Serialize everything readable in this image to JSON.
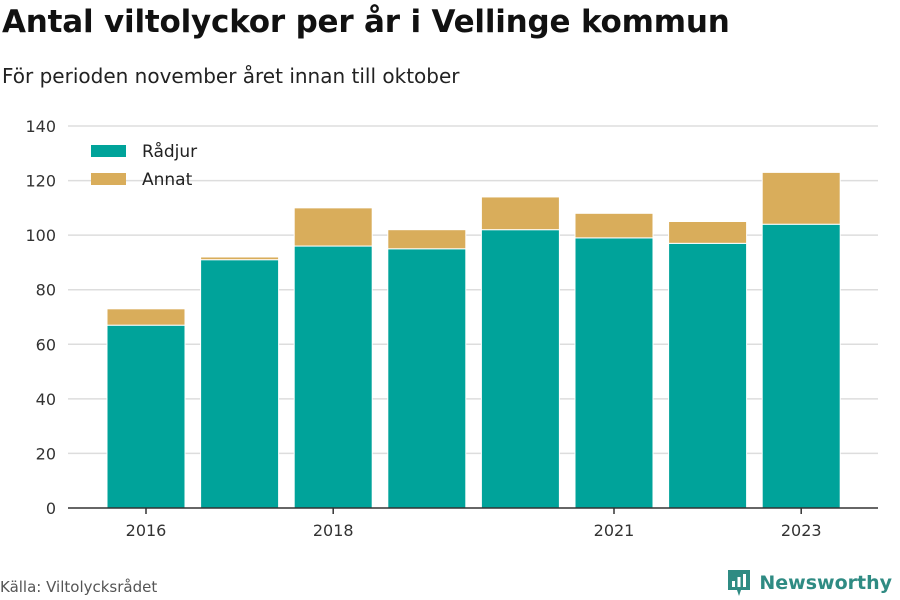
{
  "title": "Antal viltolyckor per år i Vellinge kommun",
  "subtitle": "För perioden november året innan till oktober",
  "source": "Källa: Viltolycksrådet",
  "brand": "Newsworthy",
  "colors": {
    "radjur": "#00a39a",
    "annat": "#d9ad5b",
    "grid": "#dddddd",
    "axis": "#333333",
    "brand": "#2f8b83"
  },
  "chart_data": {
    "type": "bar",
    "stacked": true,
    "categories": [
      "2016",
      "2017",
      "2018",
      "2019",
      "2020",
      "2021",
      "2022",
      "2023"
    ],
    "tick_labels": [
      "2016",
      "",
      "2018",
      "",
      "",
      "2021",
      "",
      "2023"
    ],
    "series": [
      {
        "name": "Rådjur",
        "values": [
          67,
          91,
          96,
          95,
          102,
          99,
          97,
          104
        ]
      },
      {
        "name": "Annat",
        "values": [
          6,
          1,
          14,
          7,
          12,
          9,
          8,
          19
        ]
      }
    ],
    "y_ticks": [
      0,
      20,
      40,
      60,
      80,
      100,
      120,
      140
    ],
    "ylim": [
      0,
      140
    ],
    "grid": true,
    "legend_position": "top-left"
  }
}
